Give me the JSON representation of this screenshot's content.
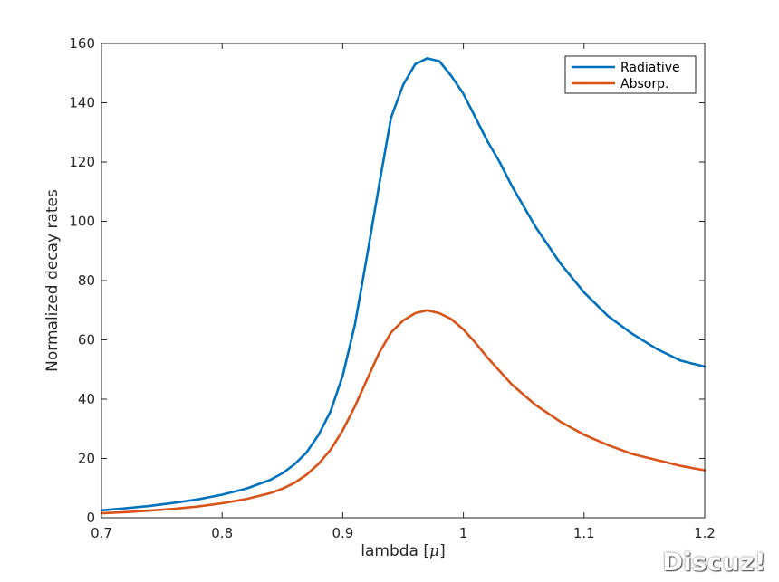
{
  "chart_data": {
    "type": "line",
    "title": "",
    "xlabel": "lambda [",
    "xlabel_symbol": "μ",
    "xlabel_close": "]",
    "ylabel": "Normalized decay rates",
    "xlim": [
      0.7,
      1.2
    ],
    "ylim": [
      0,
      160
    ],
    "xticks": [
      "0.7",
      "0.8",
      "0.9",
      "1",
      "1.1",
      "1.2"
    ],
    "yticks": [
      "0",
      "20",
      "40",
      "60",
      "80",
      "100",
      "120",
      "140",
      "160"
    ],
    "legend_position": "top-right",
    "series": [
      {
        "name": "Radiative",
        "color": "#0072BD",
        "x": [
          0.7,
          0.72,
          0.74,
          0.76,
          0.78,
          0.8,
          0.82,
          0.84,
          0.85,
          0.86,
          0.87,
          0.88,
          0.89,
          0.9,
          0.91,
          0.92,
          0.93,
          0.94,
          0.95,
          0.96,
          0.97,
          0.98,
          0.99,
          1.0,
          1.01,
          1.02,
          1.03,
          1.04,
          1.06,
          1.08,
          1.1,
          1.12,
          1.14,
          1.16,
          1.18,
          1.2
        ],
        "y": [
          2.5,
          3.2,
          4.0,
          5.0,
          6.2,
          7.8,
          9.8,
          12.8,
          15.0,
          18.0,
          22.0,
          28.0,
          36.0,
          48.0,
          65.0,
          88.0,
          112.0,
          135.0,
          146.0,
          153.0,
          155.0,
          154.0,
          149.0,
          143.0,
          135.0,
          127.0,
          120.0,
          112.0,
          98.0,
          86.0,
          76.0,
          68.0,
          62.0,
          57.0,
          53.0,
          51.0
        ]
      },
      {
        "name": "Absorp.",
        "color": "#D95319",
        "x": [
          0.7,
          0.72,
          0.74,
          0.76,
          0.78,
          0.8,
          0.82,
          0.84,
          0.85,
          0.86,
          0.87,
          0.88,
          0.89,
          0.9,
          0.91,
          0.92,
          0.93,
          0.94,
          0.95,
          0.96,
          0.97,
          0.98,
          0.99,
          1.0,
          1.01,
          1.02,
          1.04,
          1.06,
          1.08,
          1.1,
          1.12,
          1.14,
          1.16,
          1.18,
          1.2
        ],
        "y": [
          1.5,
          1.9,
          2.4,
          3.0,
          3.8,
          4.9,
          6.3,
          8.3,
          9.8,
          11.8,
          14.5,
          18.2,
          23.0,
          29.5,
          37.5,
          46.5,
          55.5,
          62.5,
          66.5,
          69.0,
          70.0,
          69.0,
          67.0,
          63.5,
          59.0,
          54.0,
          45.0,
          38.0,
          32.5,
          28.0,
          24.5,
          21.5,
          19.5,
          17.5,
          16.0
        ]
      }
    ]
  },
  "watermark": "Discuz!"
}
